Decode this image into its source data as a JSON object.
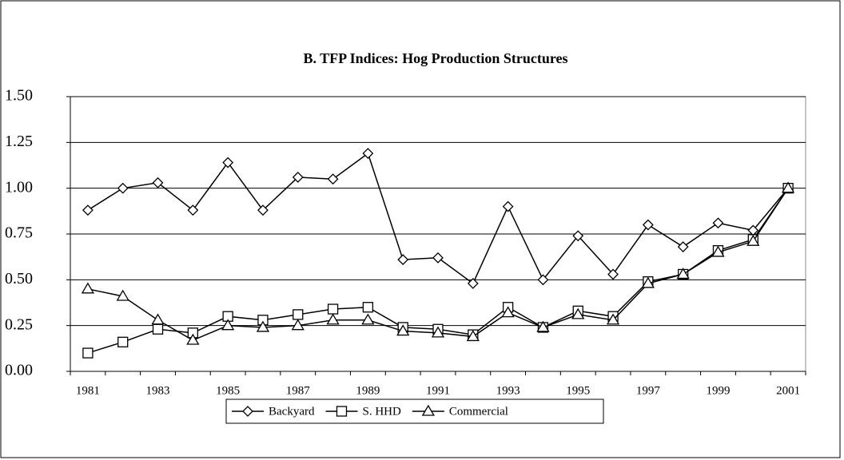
{
  "chart_data": {
    "type": "line",
    "title": "B. TFP Indices: Hog Production Structures",
    "categories": [
      "1981",
      null,
      "1983",
      null,
      "1985",
      null,
      "1987",
      null,
      "1989",
      null,
      "1991",
      null,
      "1993",
      null,
      "1995",
      null,
      "1997",
      null,
      "1999",
      null,
      "2001"
    ],
    "series": [
      {
        "name": "Backyard",
        "color": "#000000",
        "marker": "diamond",
        "values": [
          0.88,
          1.0,
          1.03,
          0.88,
          1.14,
          0.88,
          1.06,
          1.05,
          1.19,
          0.61,
          0.62,
          0.48,
          0.9,
          0.5,
          0.74,
          0.53,
          0.8,
          0.68,
          0.81,
          0.77,
          1.0
        ]
      },
      {
        "name": "S. HHD",
        "color": "#000000",
        "marker": "square",
        "values": [
          0.1,
          0.16,
          0.23,
          0.21,
          0.3,
          0.28,
          0.31,
          0.34,
          0.35,
          0.24,
          0.23,
          0.2,
          0.35,
          0.24,
          0.33,
          0.3,
          0.49,
          0.53,
          0.66,
          0.72,
          1.0
        ]
      },
      {
        "name": "Commercial",
        "color": "#000000",
        "marker": "triangle",
        "values": [
          0.45,
          0.41,
          0.28,
          0.17,
          0.25,
          0.24,
          0.25,
          0.28,
          0.28,
          0.22,
          0.21,
          0.19,
          0.32,
          0.24,
          0.31,
          0.28,
          0.48,
          0.53,
          0.65,
          0.71,
          1.0
        ]
      }
    ],
    "ylim": [
      0,
      1.5
    ],
    "yticks": [
      {
        "value": 0,
        "label": "0.00"
      },
      {
        "value": 0.25,
        "label": "0.25"
      },
      {
        "value": 0.5,
        "label": "0.50"
      },
      {
        "value": 0.75,
        "label": "0.75"
      },
      {
        "value": 1,
        "label": "1.00"
      },
      {
        "value": 1.25,
        "label": "1.25"
      },
      {
        "value": 1.5,
        "label": "1.50"
      }
    ],
    "grid": true,
    "legend": "bottom"
  }
}
